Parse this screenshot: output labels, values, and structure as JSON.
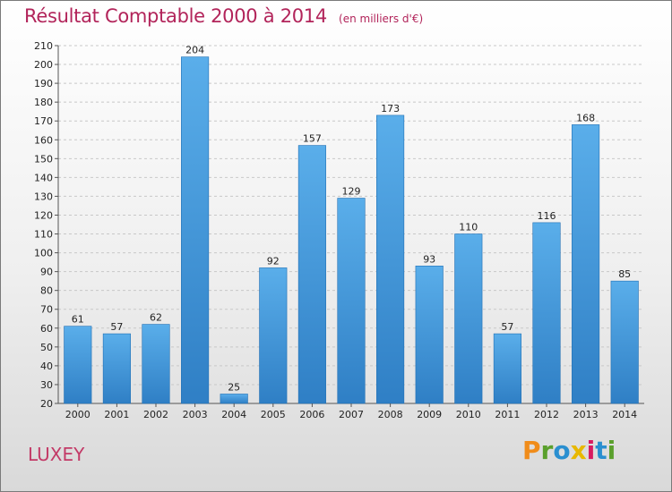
{
  "header": {
    "title": "Résultat Comptable 2000 à 2014",
    "subtitle": "(en milliers d'€)"
  },
  "footer": {
    "commune": "LUXEY",
    "logo": {
      "text": "Proxiti",
      "letters": [
        {
          "char": "P",
          "color": "#f08c1a"
        },
        {
          "char": "r",
          "color": "#5aa02c"
        },
        {
          "char": "o",
          "color": "#2a8fd0"
        },
        {
          "char": "x",
          "color": "#e8b800"
        },
        {
          "char": "i",
          "color": "#d81b60"
        },
        {
          "char": "t",
          "color": "#2a8fd0"
        },
        {
          "char": "i",
          "color": "#5aa02c"
        }
      ]
    }
  },
  "colors": {
    "bar_top": "#5aaeea",
    "bar_bottom": "#2f7fc5",
    "bar_edge": "#1f6fb5",
    "grid": "#c8c8c8",
    "axis": "#555555"
  },
  "chart_data": {
    "type": "bar",
    "categories": [
      "2000",
      "2001",
      "2002",
      "2003",
      "2004",
      "2005",
      "2006",
      "2007",
      "2008",
      "2009",
      "2010",
      "2011",
      "2012",
      "2013",
      "2014"
    ],
    "values": [
      61,
      57,
      62,
      204,
      25,
      92,
      157,
      129,
      173,
      93,
      110,
      57,
      116,
      168,
      85
    ],
    "title": "Résultat Comptable 2000 à 2014",
    "subtitle": "(en milliers d'€)",
    "xlabel": "",
    "ylabel": "",
    "ylim": [
      20,
      210
    ],
    "yticks": [
      20,
      30,
      40,
      50,
      60,
      70,
      80,
      90,
      100,
      110,
      120,
      130,
      140,
      150,
      160,
      170,
      180,
      190,
      200,
      210
    ],
    "grid": true,
    "data_labels": true,
    "legend": "none"
  }
}
